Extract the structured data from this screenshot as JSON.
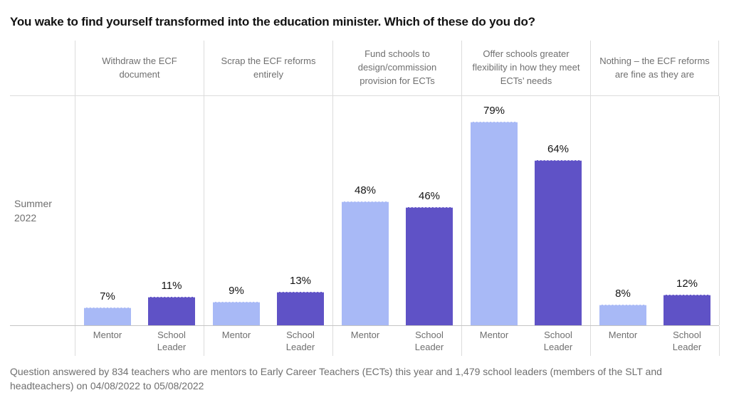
{
  "chart_data": {
    "type": "bar",
    "title": "You wake to find yourself transformed into the education minister. Which of these do you do?",
    "row_label": "Summer 2022",
    "categories": [
      "Withdraw the ECF\ndocument",
      "Scrap the ECF reforms\nentirely",
      "Fund schools to\ndesign/commission\nprovision for ECTs",
      "Offer schools greater\nflexibility in how they meet\nECTs’ needs",
      "Nothing – the ECF reforms\nare fine as they are"
    ],
    "series": [
      {
        "name": "Mentor",
        "color": "#a8b9f6",
        "values": [
          7,
          9,
          48,
          79,
          8
        ],
        "labels": [
          "7%",
          "9%",
          "48%",
          "79%",
          "8%"
        ]
      },
      {
        "name": "School Leader",
        "color": "#5f52c6",
        "values": [
          11,
          13,
          46,
          64,
          12
        ],
        "labels": [
          "11%",
          "13%",
          "46%",
          "64%",
          "12%"
        ]
      }
    ],
    "value_suffix": "%",
    "ylim": [
      0,
      89
    ],
    "grid": "column-dividers",
    "legend_position": "none (series named by x-axis labels under bars)",
    "footnote": "Question answered by 834 teachers who are mentors to Early Career Teachers (ECTs) this year and 1,479 school leaders (members of the SLT and headteachers) on 04/08/2022 to 05/08/2022"
  }
}
